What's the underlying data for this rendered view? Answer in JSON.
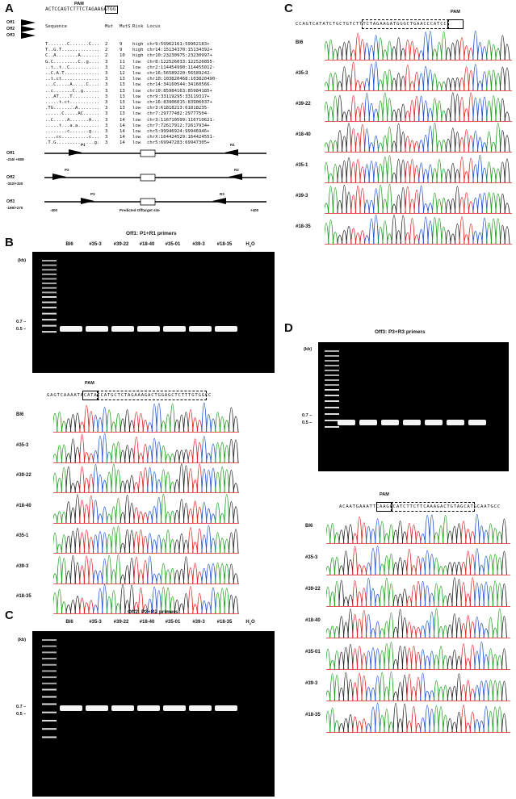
{
  "panels": {
    "A": "A",
    "B": "B",
    "C_top": "C",
    "C_bottom": "C",
    "D": "D"
  },
  "panelA": {
    "pam_label": "PAM",
    "ref_seq": "ACTCCAGTCTTTCTAGAAGATGG",
    "header": {
      "seq": "Sequence",
      "mut": "Mut",
      "muts": "MutS",
      "risk": "Risk",
      "locus": "Locus"
    },
    "arrows": [
      "Off1",
      "Off2",
      "Off3"
    ],
    "rows": [
      {
        "seq": "T.......C.......C...",
        "mut": "2",
        "muts": "9",
        "risk": "high",
        "locus": "chr9:59962161:59962183+"
      },
      {
        "seq": "T..G.T..............",
        "mut": "2",
        "muts": "9",
        "risk": "high",
        "locus": "chr14:15134370:15134392+"
      },
      {
        "seq": "C..A........A.......",
        "mut": "2",
        "muts": "10",
        "risk": "high",
        "locus": "chr10:23230975:23230997+"
      },
      {
        "seq": "G.C.........C..g....",
        "mut": "3",
        "muts": "11",
        "risk": "low",
        "locus": "chr8:122526033:122526055-"
      },
      {
        "seq": "..t..t..C...........",
        "mut": "3",
        "muts": "12",
        "risk": "low",
        "locus": "chr2:114454990:114455012-"
      },
      {
        "seq": "..C.A.T.............",
        "mut": "3",
        "muts": "12",
        "risk": "low",
        "locus": "chr16:56589220:56589242-"
      },
      {
        "seq": "..t.ct..............",
        "mut": "3",
        "muts": "13",
        "risk": "low",
        "locus": "chr10:103820468:103820490-"
      },
      {
        "seq": "...C.....A.....C....",
        "mut": "3",
        "muts": "13",
        "risk": "low",
        "locus": "chr14:34160544:34160566-"
      },
      {
        "seq": "..c.......C..g......",
        "mut": "3",
        "muts": "13",
        "risk": "low",
        "locus": "chr10:85984163:85984185+"
      },
      {
        "seq": "...AT....T..........",
        "mut": "3",
        "muts": "13",
        "risk": "low",
        "locus": "chr9:33119295:33119317+"
      },
      {
        "seq": ".....t.ct...........",
        "mut": "3",
        "muts": "13",
        "risk": "low",
        "locus": "chr16:83906015:83906037+"
      },
      {
        "seq": ".TG........A........",
        "mut": "3",
        "muts": "13",
        "risk": "low",
        "locus": "chr3:61818213:61818235-"
      },
      {
        "seq": "......C.....AC......",
        "mut": "3",
        "muts": "13",
        "risk": "low",
        "locus": "chr7:29777482:29777504-"
      },
      {
        "seq": "..C.....A.......A...",
        "mut": "3",
        "muts": "14",
        "risk": "low",
        "locus": "chr3:116710599:116710621-"
      },
      {
        "seq": ".....t...a.a........",
        "mut": "3",
        "muts": "14",
        "risk": "low",
        "locus": "chr7:72617912:72617934+"
      },
      {
        "seq": "........c.......g...",
        "mut": "3",
        "muts": "14",
        "risk": "low",
        "locus": "chr5:99946924:99946946+"
      },
      {
        "seq": "....cc..........c...",
        "mut": "3",
        "muts": "14",
        "risk": "low",
        "locus": "chrX:164424529:164424551-"
      },
      {
        "seq": ".T.G..............g.",
        "mut": "3",
        "muts": "14",
        "risk": "low",
        "locus": "chr5:69947283:69947305+"
      }
    ],
    "schematic": [
      {
        "name": "Off1",
        "range": "-216/ +808",
        "fwd": "P1",
        "rev": "R1"
      },
      {
        "name": "Off2",
        "range": "-322/+320",
        "fwd": "P2",
        "rev": "R2"
      },
      {
        "name": "Off3",
        "range": "-199/+270",
        "fwd": "P3",
        "rev": "R3"
      }
    ],
    "axis_left": "-400",
    "axis_right": "+400",
    "axis_mid": "Predicted Offtarget site"
  },
  "lanes": [
    "Bl6",
    "#35-3",
    "#39-22",
    "#18-40",
    "#35-01",
    "#39-3",
    "#18-35",
    "H2O"
  ],
  "h2o": {
    "main": "H",
    "sub": "2",
    "tail": "O"
  },
  "kb_label": "(kb)",
  "kb_07": "0.7 –",
  "kb_05": "0.5 –",
  "panelB": {
    "title": "Off1: P1+R1 primers",
    "seq": "GAGTCAAAATACATACCATGCTCTAGAAAGACTGGAGCTCTTTGTGGCC",
    "pam": "PAM",
    "trace_labels": [
      "Bl6",
      "#35-3",
      "#39-22",
      "#18-40",
      "#35-1",
      "#39-3",
      "#18-35"
    ]
  },
  "panelCbot": {
    "title": "Off2: P2+R2 primers"
  },
  "panelCtop": {
    "seq": "CCAGTCATATCTGCTGTCTTTCTAGAAGATGGGCTGAACCCATCC",
    "pam": "PAM",
    "trace_labels": [
      "Bl6",
      "#35-3",
      "#39-22",
      "#18-40",
      "#35-1",
      "#39-3",
      "#18-35"
    ]
  },
  "panelD": {
    "title": "Off3: P3+R3 primers",
    "seq": "ACAATGAAATTCAAGCCATCTTCTTCAAAGACTGTAGCATGCAATGCC",
    "pam": "PAM",
    "trace_labels": [
      "Bl6",
      "#35-3",
      "#39-22",
      "#18-40",
      "#35-01",
      "#39-3",
      "#18-35"
    ]
  }
}
